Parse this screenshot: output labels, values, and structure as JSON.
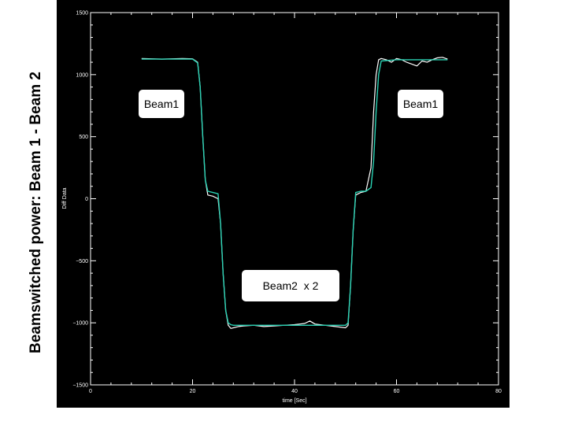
{
  "slide": {
    "title": "Beamswitched power: Beam 1 - Beam 2"
  },
  "chart_data": {
    "type": "line",
    "xlabel": "time [Sec]",
    "ylabel": "Diff Data",
    "xlim": [
      0,
      80
    ],
    "ylim": [
      -1500,
      1500
    ],
    "x_ticks": [
      0,
      20,
      40,
      60,
      80
    ],
    "y_ticks": [
      -1500,
      -1000,
      -500,
      0,
      500,
      1000,
      1500
    ],
    "grid": false,
    "colors": {
      "background": "#000000",
      "axes": "#ffffff",
      "measured": "#ffffff",
      "model": "#2ad2b4"
    },
    "annotations": [
      {
        "text": "Beam1",
        "near": "upper-left"
      },
      {
        "text": "Beam2  x 2",
        "near": "bottom-center"
      },
      {
        "text": "Beam1",
        "near": "upper-right"
      }
    ],
    "series": [
      {
        "color": "#ffffff",
        "x": [
          10,
          14,
          18,
          20,
          21,
          21.5,
          22,
          22.5,
          23,
          24,
          25,
          25.5,
          26,
          26.5,
          27,
          27.5,
          28,
          29,
          30,
          32,
          34,
          36,
          38,
          40,
          42,
          43,
          44,
          46,
          48,
          50,
          50.5,
          51,
          51.5,
          52,
          52.5,
          53,
          54,
          55,
          55.5,
          56,
          56.5,
          57,
          58,
          59,
          60,
          61,
          62,
          63,
          64,
          65,
          66,
          67,
          68,
          69,
          70
        ],
        "y": [
          1130,
          1125,
          1130,
          1128,
          1100,
          900,
          500,
          150,
          30,
          20,
          0,
          -200,
          -600,
          -900,
          -1020,
          -1045,
          -1040,
          -1030,
          -1025,
          -1020,
          -1030,
          -1025,
          -1020,
          -1015,
          -1005,
          -985,
          -1010,
          -1020,
          -1030,
          -1040,
          -1020,
          -700,
          -250,
          30,
          40,
          50,
          60,
          250,
          700,
          1000,
          1120,
          1130,
          1120,
          1100,
          1130,
          1120,
          1100,
          1085,
          1070,
          1110,
          1100,
          1120,
          1135,
          1140,
          1125
        ]
      },
      {
        "color": "#2ad2b4",
        "x": [
          10,
          14,
          18,
          20,
          21,
          21.5,
          22,
          22.5,
          23,
          24,
          25,
          25.5,
          26,
          26.5,
          27,
          27.5,
          28,
          30,
          35,
          40,
          45,
          50,
          50.5,
          51,
          51.5,
          52,
          53,
          54,
          55,
          55.5,
          56,
          56.5,
          57,
          60,
          65,
          70
        ],
        "y": [
          1125,
          1125,
          1125,
          1125,
          1095,
          900,
          500,
          150,
          60,
          50,
          40,
          -200,
          -600,
          -900,
          -1000,
          -1015,
          -1020,
          -1020,
          -1020,
          -1020,
          -1020,
          -1020,
          -1000,
          -700,
          -250,
          50,
          60,
          60,
          90,
          300,
          700,
          1000,
          1110,
          1120,
          1120,
          1120
        ]
      }
    ]
  }
}
